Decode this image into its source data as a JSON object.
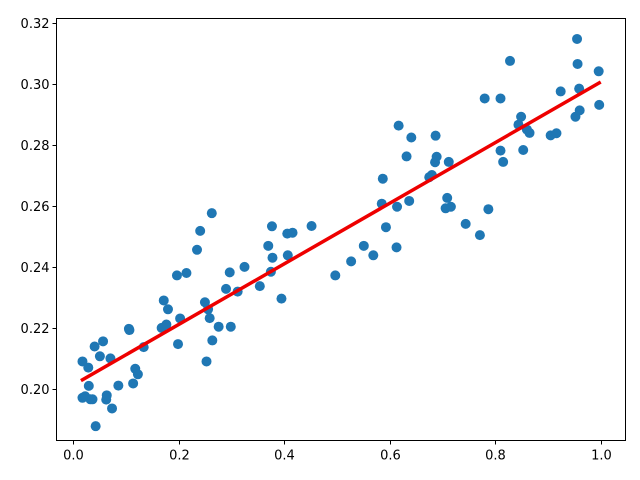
{
  "chart_data": {
    "type": "scatter",
    "title": "",
    "xlabel": "",
    "ylabel": "",
    "xlim": [
      -0.0312,
      1.0468
    ],
    "ylim": [
      0.1832,
      0.3215
    ],
    "grid": false,
    "legend": "none",
    "x_ticks": [
      0.0,
      0.2,
      0.4,
      0.6,
      0.8,
      1.0
    ],
    "x_tick_labels": [
      "0.0",
      "0.2",
      "0.4",
      "0.6",
      "0.8",
      "1.0"
    ],
    "y_ticks": [
      0.2,
      0.22,
      0.24,
      0.26,
      0.28,
      0.3,
      0.32
    ],
    "y_tick_labels": [
      "0.20",
      "0.22",
      "0.24",
      "0.26",
      "0.28",
      "0.30",
      "0.32"
    ],
    "series": [
      {
        "type": "scatter",
        "color": "#1f77b4",
        "points": [
          [
            0.018,
            0.2091
          ],
          [
            0.018,
            0.1972
          ],
          [
            0.023,
            0.1977
          ],
          [
            0.029,
            0.2071
          ],
          [
            0.03,
            0.2011
          ],
          [
            0.033,
            0.1967
          ],
          [
            0.037,
            0.1967
          ],
          [
            0.041,
            0.214
          ],
          [
            0.043,
            0.1879
          ],
          [
            0.051,
            0.2108
          ],
          [
            0.057,
            0.2157
          ],
          [
            0.063,
            0.1966
          ],
          [
            0.064,
            0.198
          ],
          [
            0.071,
            0.2101
          ],
          [
            0.074,
            0.1937
          ],
          [
            0.086,
            0.2012
          ],
          [
            0.106,
            0.2198
          ],
          [
            0.107,
            0.2194
          ],
          [
            0.114,
            0.2019
          ],
          [
            0.118,
            0.2067
          ],
          [
            0.123,
            0.2049
          ],
          [
            0.134,
            0.2138
          ],
          [
            0.168,
            0.2201
          ],
          [
            0.172,
            0.2291
          ],
          [
            0.177,
            0.2212
          ],
          [
            0.18,
            0.2262
          ],
          [
            0.197,
            0.2373
          ],
          [
            0.199,
            0.2148
          ],
          [
            0.203,
            0.2232
          ],
          [
            0.215,
            0.2381
          ],
          [
            0.235,
            0.2457
          ],
          [
            0.241,
            0.2519
          ],
          [
            0.25,
            0.2285
          ],
          [
            0.253,
            0.2091
          ],
          [
            0.256,
            0.2262
          ],
          [
            0.259,
            0.2233
          ],
          [
            0.263,
            0.2577
          ],
          [
            0.264,
            0.216
          ],
          [
            0.276,
            0.2205
          ],
          [
            0.29,
            0.2329
          ],
          [
            0.297,
            0.2383
          ],
          [
            0.299,
            0.2205
          ],
          [
            0.312,
            0.232
          ],
          [
            0.325,
            0.2401
          ],
          [
            0.354,
            0.2338
          ],
          [
            0.37,
            0.247
          ],
          [
            0.375,
            0.2385
          ],
          [
            0.377,
            0.2534
          ],
          [
            0.378,
            0.2431
          ],
          [
            0.395,
            0.2297
          ],
          [
            0.406,
            0.251
          ],
          [
            0.407,
            0.2439
          ],
          [
            0.416,
            0.2513
          ],
          [
            0.452,
            0.2535
          ],
          [
            0.497,
            0.2373
          ],
          [
            0.527,
            0.2419
          ],
          [
            0.551,
            0.247
          ],
          [
            0.569,
            0.2439
          ],
          [
            0.585,
            0.2608
          ],
          [
            0.587,
            0.269
          ],
          [
            0.593,
            0.2531
          ],
          [
            0.613,
            0.2465
          ],
          [
            0.614,
            0.2598
          ],
          [
            0.617,
            0.2864
          ],
          [
            0.632,
            0.2763
          ],
          [
            0.637,
            0.2617
          ],
          [
            0.641,
            0.2825
          ],
          [
            0.675,
            0.2695
          ],
          [
            0.68,
            0.2702
          ],
          [
            0.686,
            0.2744
          ],
          [
            0.687,
            0.2831
          ],
          [
            0.689,
            0.2762
          ],
          [
            0.706,
            0.2593
          ],
          [
            0.709,
            0.2627
          ],
          [
            0.712,
            0.2745
          ],
          [
            0.716,
            0.2598
          ],
          [
            0.744,
            0.2542
          ],
          [
            0.771,
            0.2505
          ],
          [
            0.78,
            0.2953
          ],
          [
            0.787,
            0.259
          ],
          [
            0.81,
            0.2953
          ],
          [
            0.81,
            0.2782
          ],
          [
            0.815,
            0.2745
          ],
          [
            0.828,
            0.3076
          ],
          [
            0.844,
            0.2867
          ],
          [
            0.849,
            0.2893
          ],
          [
            0.853,
            0.2784
          ],
          [
            0.86,
            0.2851
          ],
          [
            0.865,
            0.284
          ],
          [
            0.905,
            0.2832
          ],
          [
            0.916,
            0.2839
          ],
          [
            0.924,
            0.2976
          ],
          [
            0.952,
            0.2893
          ],
          [
            0.955,
            0.3148
          ],
          [
            0.956,
            0.3066
          ],
          [
            0.959,
            0.2985
          ],
          [
            0.96,
            0.2914
          ],
          [
            0.996,
            0.3042
          ],
          [
            0.997,
            0.2932
          ]
        ]
      },
      {
        "type": "line",
        "color": "#ee0000",
        "x": [
          0.018,
          0.997
        ],
        "y": [
          0.2031,
          0.3004
        ]
      }
    ]
  }
}
